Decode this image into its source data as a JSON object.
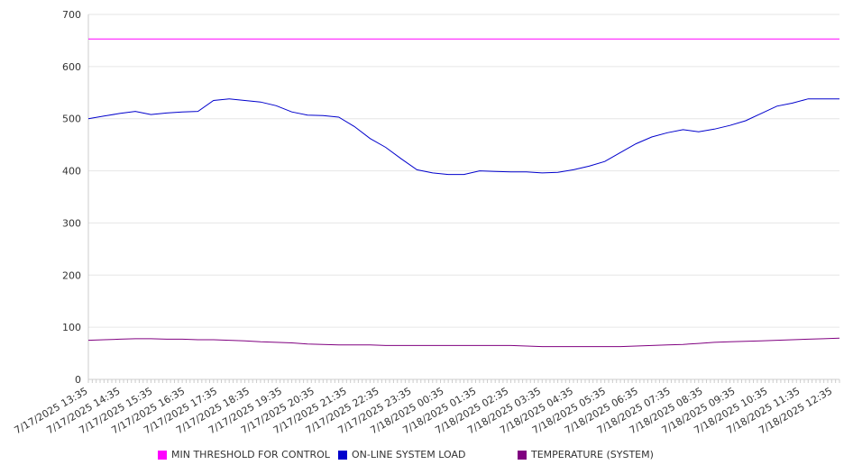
{
  "chart_data": {
    "type": "line",
    "title": "",
    "xlabel": "",
    "ylabel": "",
    "ylim": [
      0,
      700
    ],
    "yticks": [
      0,
      100,
      200,
      300,
      400,
      500,
      600,
      700
    ],
    "grid": true,
    "legend_position": "bottom",
    "x_tick_labels": [
      "7/17/2025 13:35",
      "7/17/2025 14:35",
      "7/17/2025 15:35",
      "7/17/2025 16:35",
      "7/17/2025 17:35",
      "7/17/2025 18:35",
      "7/17/2025 19:35",
      "7/17/2025 20:35",
      "7/17/2025 21:35",
      "7/17/2025 22:35",
      "7/17/2025 23:35",
      "7/18/2025 00:35",
      "7/18/2025 01:35",
      "7/18/2025 02:35",
      "7/18/2025 03:35",
      "7/18/2025 04:35",
      "7/18/2025 05:35",
      "7/18/2025 06:35",
      "7/18/2025 07:35",
      "7/18/2025 08:35",
      "7/18/2025 09:35",
      "7/18/2025 10:35",
      "7/18/2025 11:35",
      "7/18/2025 12:35"
    ],
    "x": [
      "7/17/2025 13:35",
      "7/17/2025 14:05",
      "7/17/2025 14:35",
      "7/17/2025 15:05",
      "7/17/2025 15:35",
      "7/17/2025 16:05",
      "7/17/2025 16:35",
      "7/17/2025 17:05",
      "7/17/2025 17:35",
      "7/17/2025 18:05",
      "7/17/2025 18:35",
      "7/17/2025 19:05",
      "7/17/2025 19:35",
      "7/17/2025 20:05",
      "7/17/2025 20:35",
      "7/17/2025 21:05",
      "7/17/2025 21:35",
      "7/17/2025 22:05",
      "7/17/2025 22:35",
      "7/17/2025 23:05",
      "7/17/2025 23:35",
      "7/18/2025 00:05",
      "7/18/2025 00:35",
      "7/18/2025 01:05",
      "7/18/2025 01:35",
      "7/18/2025 02:05",
      "7/18/2025 02:35",
      "7/18/2025 03:05",
      "7/18/2025 03:35",
      "7/18/2025 04:05",
      "7/18/2025 04:35",
      "7/18/2025 05:05",
      "7/18/2025 05:35",
      "7/18/2025 06:05",
      "7/18/2025 06:35",
      "7/18/2025 07:05",
      "7/18/2025 07:35",
      "7/18/2025 08:05",
      "7/18/2025 08:35",
      "7/18/2025 09:05",
      "7/18/2025 09:35",
      "7/18/2025 10:05",
      "7/18/2025 10:35",
      "7/18/2025 11:05",
      "7/18/2025 11:35",
      "7/18/2025 12:05",
      "7/18/2025 12:35",
      "7/18/2025 13:05",
      "7/18/2025 13:35"
    ],
    "series": [
      {
        "name": "MIN THRESHOLD FOR CONTROL",
        "color": "#ff00ff",
        "values": [
          653,
          653,
          653,
          653,
          653,
          653,
          653,
          653,
          653,
          653,
          653,
          653,
          653,
          653,
          653,
          653,
          653,
          653,
          653,
          653,
          653,
          653,
          653,
          653,
          653,
          653,
          653,
          653,
          653,
          653,
          653,
          653,
          653,
          653,
          653,
          653,
          653,
          653,
          653,
          653,
          653,
          653,
          653,
          653,
          653,
          653,
          653,
          653,
          653
        ]
      },
      {
        "name": "ON-LINE SYSTEM LOAD",
        "color": "#0000cc",
        "values": [
          500,
          505,
          510,
          514,
          508,
          511,
          513,
          514,
          535,
          538,
          535,
          532,
          525,
          513,
          507,
          506,
          503,
          485,
          462,
          445,
          423,
          402,
          396,
          393,
          393,
          400,
          399,
          398,
          398,
          396,
          397,
          402,
          409,
          418,
          435,
          452,
          465,
          473,
          479,
          475,
          480,
          487,
          496,
          510,
          524,
          530,
          538,
          538,
          538
        ]
      },
      {
        "name": "TEMPERATURE (SYSTEM)",
        "color": "#800080",
        "values": [
          75,
          76,
          77,
          78,
          78,
          77,
          77,
          76,
          76,
          75,
          74,
          72,
          71,
          70,
          68,
          67,
          66,
          66,
          66,
          65,
          65,
          65,
          65,
          65,
          65,
          65,
          65,
          65,
          64,
          63,
          63,
          63,
          63,
          63,
          63,
          64,
          65,
          66,
          67,
          69,
          71,
          72,
          73,
          74,
          75,
          76,
          77,
          78,
          79
        ]
      }
    ]
  }
}
